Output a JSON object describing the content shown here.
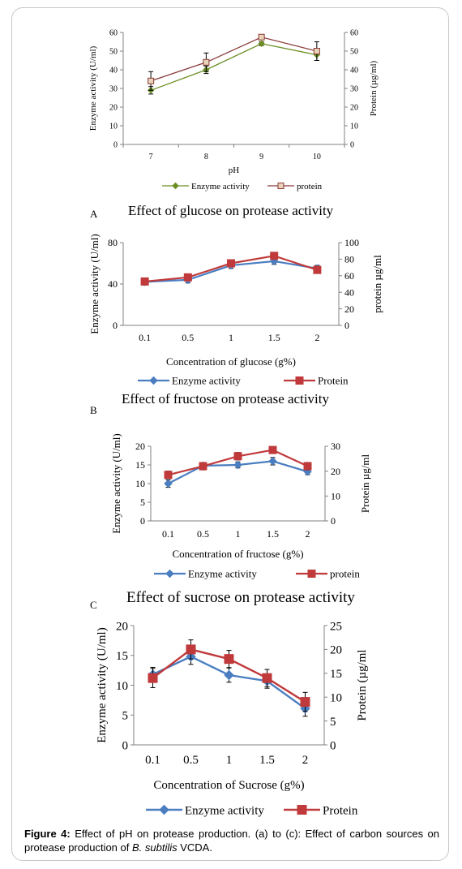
{
  "panels": [
    {
      "label": "",
      "title": ""
    },
    {
      "label": "A",
      "title": "Effect of glucose on protease activity"
    },
    {
      "label": "B",
      "title": "Effect of fructose on protease activity"
    },
    {
      "label": "C",
      "title": "Effect of sucrose on protease activity"
    }
  ],
  "caption": {
    "lead": "Figure 4:",
    "text1": " Effect of pH on protease production. (a) to (c): Effect of carbon sources on protease production of ",
    "italic": "B. subtilis",
    "text2": " VCDA."
  },
  "chart_data": [
    {
      "type": "line",
      "title": "",
      "xlabel": "pH",
      "ylabel": "Enzyme activity (U/ml)",
      "y2label": "Protein (µg/ml)",
      "categories": [
        "7",
        "8",
        "9",
        "10"
      ],
      "ylim": [
        0,
        60
      ],
      "y2lim": [
        0,
        60
      ],
      "yticks": [
        0,
        10,
        20,
        30,
        40,
        50,
        60
      ],
      "y2ticks": [
        0,
        10,
        20,
        30,
        40,
        50,
        60
      ],
      "grid": false,
      "legend": "bottom",
      "series": [
        {
          "name": "Enzyme activity",
          "axis": "left",
          "color": "#6b8e23",
          "marker": "diamond",
          "values": [
            29,
            40,
            54,
            48
          ],
          "errors": [
            2,
            2,
            1,
            3
          ]
        },
        {
          "name": "protein",
          "axis": "right",
          "color": "#8b3a3a",
          "marker": "square-open",
          "values": [
            34,
            44,
            57.5,
            50
          ],
          "errors": [
            5,
            5,
            1,
            5
          ]
        }
      ]
    },
    {
      "type": "line",
      "title": "Effect of glucose on protease activity",
      "xlabel": "Concentration of glucose (g%)",
      "ylabel": "Enzyme activity (U/ml)",
      "y2label": "protein µg/ml",
      "categories": [
        "0.1",
        "0.5",
        "1",
        "1.5",
        "2"
      ],
      "ylim": [
        0,
        80
      ],
      "y2lim": [
        0,
        100
      ],
      "yticks": [
        0,
        40,
        80
      ],
      "y2ticks": [
        0,
        20,
        40,
        60,
        80,
        100
      ],
      "grid": false,
      "legend": "bottom",
      "series": [
        {
          "name": "Enzyme activity",
          "axis": "left",
          "color": "#4a7ec0",
          "marker": "diamond",
          "values": [
            42,
            44,
            58,
            62,
            55
          ],
          "errors": [
            3,
            3,
            3,
            3,
            3
          ]
        },
        {
          "name": "Protein",
          "axis": "right",
          "color": "#c0393b",
          "marker": "square",
          "values": [
            53,
            58,
            75,
            84,
            67
          ],
          "errors": [
            4,
            4,
            4,
            4,
            4
          ]
        }
      ]
    },
    {
      "type": "line",
      "title": "Effect of fructose on protease activity",
      "xlabel": "Concentration of fructose  (g%)",
      "ylabel": "Enzyme activity (U/ml)",
      "y2label": "Protein µg/ml",
      "categories": [
        "0.1",
        "0.5",
        "1",
        "1.5",
        "2"
      ],
      "ylim": [
        0,
        20
      ],
      "y2lim": [
        0,
        30
      ],
      "yticks": [
        0,
        5,
        10,
        15,
        20
      ],
      "y2ticks": [
        0,
        10,
        20,
        30
      ],
      "grid": false,
      "legend": "bottom",
      "series": [
        {
          "name": "Enzyme activity",
          "axis": "left",
          "color": "#4a7ec0",
          "marker": "diamond",
          "values": [
            10,
            14.8,
            15,
            16,
            13.2
          ],
          "errors": [
            1,
            0.8,
            0.8,
            1,
            0.8
          ]
        },
        {
          "name": "protein",
          "axis": "right",
          "color": "#c0393b",
          "marker": "square",
          "values": [
            18.5,
            22,
            26,
            28.5,
            22
          ],
          "errors": [
            1.5,
            1.5,
            1.5,
            1,
            1.5
          ]
        }
      ]
    },
    {
      "type": "line",
      "title": "Effect of sucrose on protease activity",
      "xlabel": "Concentration of Sucrose (g%)",
      "ylabel": "Enzyme activity (U/ml)",
      "y2label": "Protein (µg/ml",
      "categories": [
        "0.1",
        "0.5",
        "1",
        "1.5",
        "2"
      ],
      "ylim": [
        0,
        20
      ],
      "y2lim": [
        0,
        25
      ],
      "yticks": [
        0,
        5,
        10,
        15,
        20
      ],
      "y2ticks": [
        0,
        5,
        10,
        15,
        20,
        25
      ],
      "grid": false,
      "legend": "bottom",
      "series": [
        {
          "name": "Enzyme activity",
          "axis": "left",
          "color": "#4a7ec0",
          "marker": "diamond",
          "values": [
            11.8,
            14.8,
            11.7,
            10.7,
            6.1
          ],
          "errors": [
            1.2,
            1.3,
            1.2,
            1.2,
            1.3
          ]
        },
        {
          "name": "Protein",
          "axis": "right",
          "color": "#c0393b",
          "marker": "square",
          "values": [
            14,
            20,
            18,
            14,
            9
          ],
          "errors": [
            2,
            2,
            1.8,
            1.8,
            2
          ]
        }
      ]
    }
  ]
}
